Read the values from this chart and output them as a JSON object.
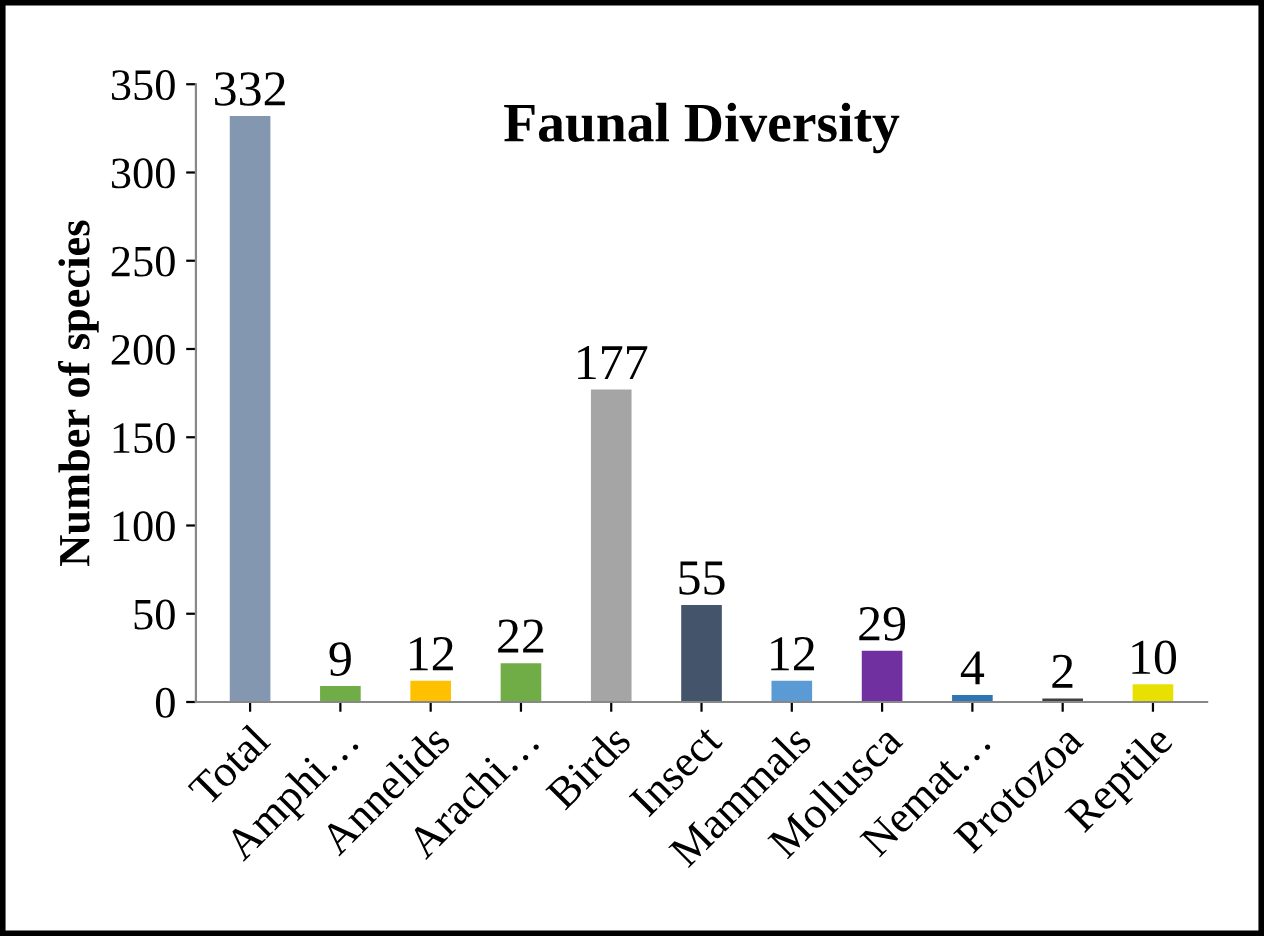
{
  "chart_data": {
    "type": "bar",
    "title": "Faunal Diversity",
    "ylabel": "Number of species",
    "categories": [
      "Total",
      "Amphi…",
      "Annelids",
      "Arachi…",
      "Birds",
      "Insect",
      "Mammals",
      "Mollusca",
      "Nemat…",
      "Protozoa",
      "Reptile"
    ],
    "values": [
      332,
      9,
      12,
      22,
      177,
      55,
      12,
      29,
      4,
      2,
      10
    ],
    "colors": [
      "#8497b0",
      "#70ad47",
      "#ffc000",
      "#70ad47",
      "#a5a5a5",
      "#44546a",
      "#5b9bd5",
      "#7030a0",
      "#2e75b6",
      "#404040",
      "#e8e000"
    ],
    "ylim": [
      0,
      350
    ],
    "yticks": [
      0,
      50,
      100,
      150,
      200,
      250,
      300,
      350
    ],
    "data_labels": true,
    "grid": false,
    "legend": false
  }
}
